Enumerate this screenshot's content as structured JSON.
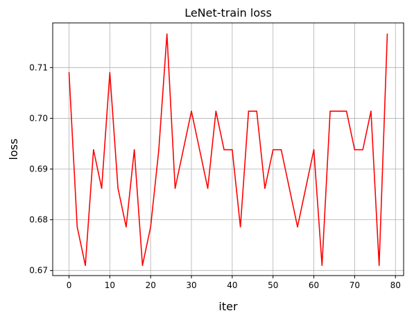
{
  "chart_data": {
    "type": "line",
    "title": "LeNet-train loss",
    "xlabel": "iter",
    "ylabel": "loss",
    "xlim": [
      -4,
      82
    ],
    "ylim": [
      0.669,
      0.7188
    ],
    "xticks": [
      0,
      10,
      20,
      30,
      40,
      50,
      60,
      70,
      80
    ],
    "xtick_labels": [
      "0",
      "10",
      "20",
      "30",
      "40",
      "50",
      "60",
      "70",
      "80"
    ],
    "yticks": [
      0.67,
      0.68,
      0.69,
      0.7,
      0.71
    ],
    "ytick_labels": [
      "0.67",
      "0.68",
      "0.69",
      "0.70",
      "0.71"
    ],
    "grid": true,
    "series": [
      {
        "color": "#ff0000",
        "x": [
          0,
          2,
          4,
          6,
          8,
          10,
          12,
          14,
          16,
          18,
          20,
          22,
          24,
          26,
          28,
          30,
          32,
          34,
          36,
          38,
          40,
          42,
          44,
          46,
          48,
          50,
          52,
          54,
          56,
          58,
          60,
          62,
          64,
          66,
          68,
          70,
          72,
          74,
          76,
          78
        ],
        "y": [
          0.709,
          0.6786,
          0.671,
          0.6938,
          0.6862,
          0.709,
          0.6862,
          0.6786,
          0.6938,
          0.671,
          0.6786,
          0.6938,
          0.7166,
          0.6862,
          0.6938,
          0.7014,
          0.6938,
          0.6862,
          0.7014,
          0.6938,
          0.6938,
          0.6786,
          0.7014,
          0.7014,
          0.6862,
          0.6938,
          0.6938,
          0.6862,
          0.6786,
          0.6862,
          0.6938,
          0.671,
          0.7014,
          0.7014,
          0.7014,
          0.6938,
          0.6938,
          0.7014,
          0.671,
          0.7166
        ]
      }
    ]
  }
}
